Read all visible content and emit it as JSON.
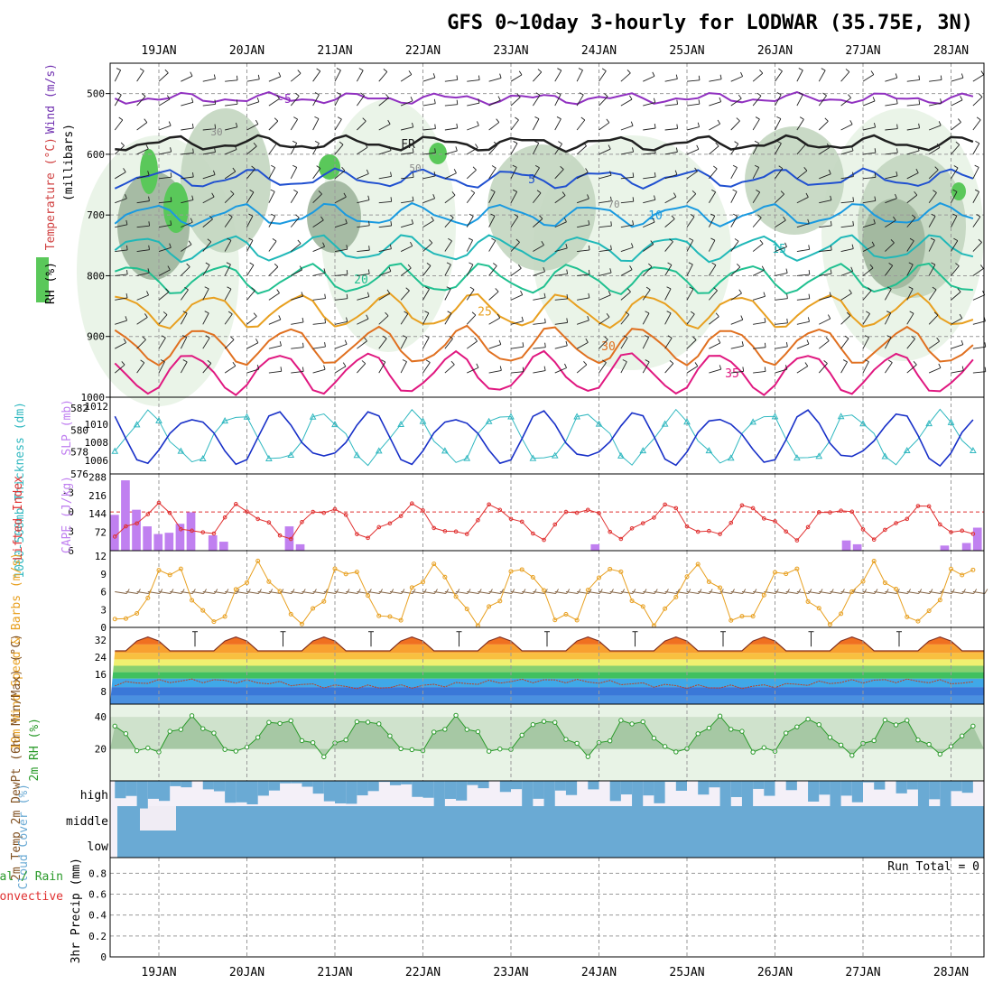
{
  "title": "GFS 0~10day 3-hourly for LODWAR (35.75E, 3N)",
  "dates": [
    "19JAN",
    "20JAN",
    "21JAN",
    "22JAN",
    "23JAN",
    "24JAN",
    "25JAN",
    "26JAN",
    "27JAN",
    "28JAN"
  ],
  "colors": {
    "frame": "#000000",
    "grid": "#9a9a9a",
    "rh_light": "#e8f3e6",
    "rh_mid": "#c3d6c0",
    "rh_dark": "#9fb59c",
    "rh_green": "#5ac85a",
    "slp": "#1830c8",
    "thickness": "#30b8c0",
    "li": "#e03030",
    "cape": "#c080f0",
    "wind_speed": "#e8a020",
    "barbs": "#806040",
    "rh2m": "#2a9a2a",
    "cloud": "#6aaad4"
  },
  "chart_data": [
    {
      "type": "contour",
      "name": "upper-air",
      "labels": {
        "wind": "Wind (m/s)",
        "temperature": "Temperature (°C)",
        "rh": "RH (%)",
        "axis": "(millibars)"
      },
      "yticks": [
        500,
        600,
        700,
        800,
        900,
        1000
      ],
      "ylim": [
        450,
        1000
      ],
      "isotherms": [
        {
          "label": "-5",
          "color": "#9030c0",
          "p": 508
        },
        {
          "label": "FR",
          "color": "#202020",
          "p": 582
        },
        {
          "label": "5",
          "color": "#2050d0",
          "p": 640
        },
        {
          "label": "10",
          "color": "#1a9ae0",
          "p": 700
        },
        {
          "label": "15",
          "color": "#20b8b8",
          "p": 755
        },
        {
          "label": "20",
          "color": "#20c090",
          "p": 805
        },
        {
          "label": "25",
          "color": "#e8a020",
          "p": 858
        },
        {
          "label": "30",
          "color": "#e07020",
          "p": 915
        },
        {
          "label": "35",
          "color": "#e01880",
          "p": 960
        }
      ],
      "rh_labels": [
        "30",
        "50",
        "70"
      ]
    },
    {
      "type": "line",
      "name": "thickness-slp",
      "labels": {
        "thickness": "1000-500mb Thickness (dm)",
        "slp": "SLP (mb)"
      },
      "thickness_ticks": [
        576,
        578,
        580,
        582
      ],
      "slp_ticks": [
        1006,
        1008,
        1010,
        1012
      ],
      "thickness_lim": [
        576,
        583
      ],
      "slp_lim": [
        1004.5,
        1013
      ]
    },
    {
      "type": "bar",
      "name": "li-cape",
      "labels": {
        "li": "Lifted Index",
        "cape": "CAPE (J/kg)"
      },
      "li_ticks": [
        "-3",
        "0",
        "3",
        "6"
      ],
      "cape_ticks": [
        "72",
        "144",
        "216",
        "288"
      ],
      "cape_values": [
        140,
        0,
        275,
        0,
        160,
        0,
        95,
        0,
        65,
        0,
        70,
        0,
        105,
        0,
        150,
        0,
        0,
        0,
        60,
        0,
        35,
        0,
        0,
        0,
        0,
        0,
        0,
        0,
        0,
        0,
        0,
        0,
        95,
        0,
        25,
        0,
        0,
        0,
        0,
        0,
        0,
        0,
        0,
        0,
        0,
        0,
        0,
        0,
        0,
        0,
        0,
        0,
        0,
        0,
        0,
        0,
        0,
        0,
        0,
        0,
        0,
        0,
        0,
        0,
        0,
        0,
        0,
        0,
        0,
        0,
        0,
        0,
        0,
        0,
        0,
        0,
        0,
        0,
        0,
        0,
        0,
        0,
        0,
        0,
        0,
        0,
        0,
        0,
        25,
        0,
        0,
        0,
        0,
        0,
        0,
        0,
        0,
        0,
        0,
        0,
        0,
        0,
        0,
        0,
        0,
        0,
        0,
        0,
        0,
        0,
        0,
        0,
        0,
        0,
        0,
        0,
        0,
        0,
        0,
        0,
        0,
        0,
        0,
        0,
        0,
        0,
        0,
        0,
        0,
        0,
        0,
        0,
        0,
        0,
        40,
        0,
        25,
        0,
        0,
        0,
        0,
        0,
        0,
        0,
        0,
        0,
        0,
        0,
        0,
        0,
        0,
        0,
        20,
        0,
        0,
        0,
        30,
        0,
        90,
        0
      ]
    },
    {
      "type": "line",
      "name": "wind10m",
      "labels": {
        "y": "10m Wind Speed & Barbs (m/s)"
      },
      "yticks": [
        "0",
        "3",
        "6",
        "9",
        "12"
      ],
      "ylim": [
        0,
        12
      ]
    },
    {
      "type": "area",
      "name": "temp2m",
      "labels": {
        "y": "2m Temp 2m DewPt (6hr Min/Max) (°C)"
      },
      "yticks": [
        "8",
        "16",
        "24",
        "32"
      ],
      "ylim": [
        2,
        38
      ]
    },
    {
      "type": "line",
      "name": "rh2m",
      "labels": {
        "y": "2m RH (%)"
      },
      "yticks": [
        "20",
        "40"
      ],
      "ylim": [
        0,
        48
      ]
    },
    {
      "type": "bar",
      "name": "cloud",
      "labels": {
        "y": "Cloud Cover (%)",
        "high": "high",
        "middle": "middle",
        "low": "low"
      }
    },
    {
      "type": "bar",
      "name": "precip",
      "labels": {
        "y": "3hr Precip (mm)",
        "total": "Total / Rain",
        "convective": "Convective",
        "run_total": "Run Total = 0"
      },
      "yticks": [
        "0",
        "0.2",
        "0.4",
        "0.6",
        "0.8"
      ],
      "ylim": [
        0,
        0.95
      ],
      "values": []
    }
  ]
}
